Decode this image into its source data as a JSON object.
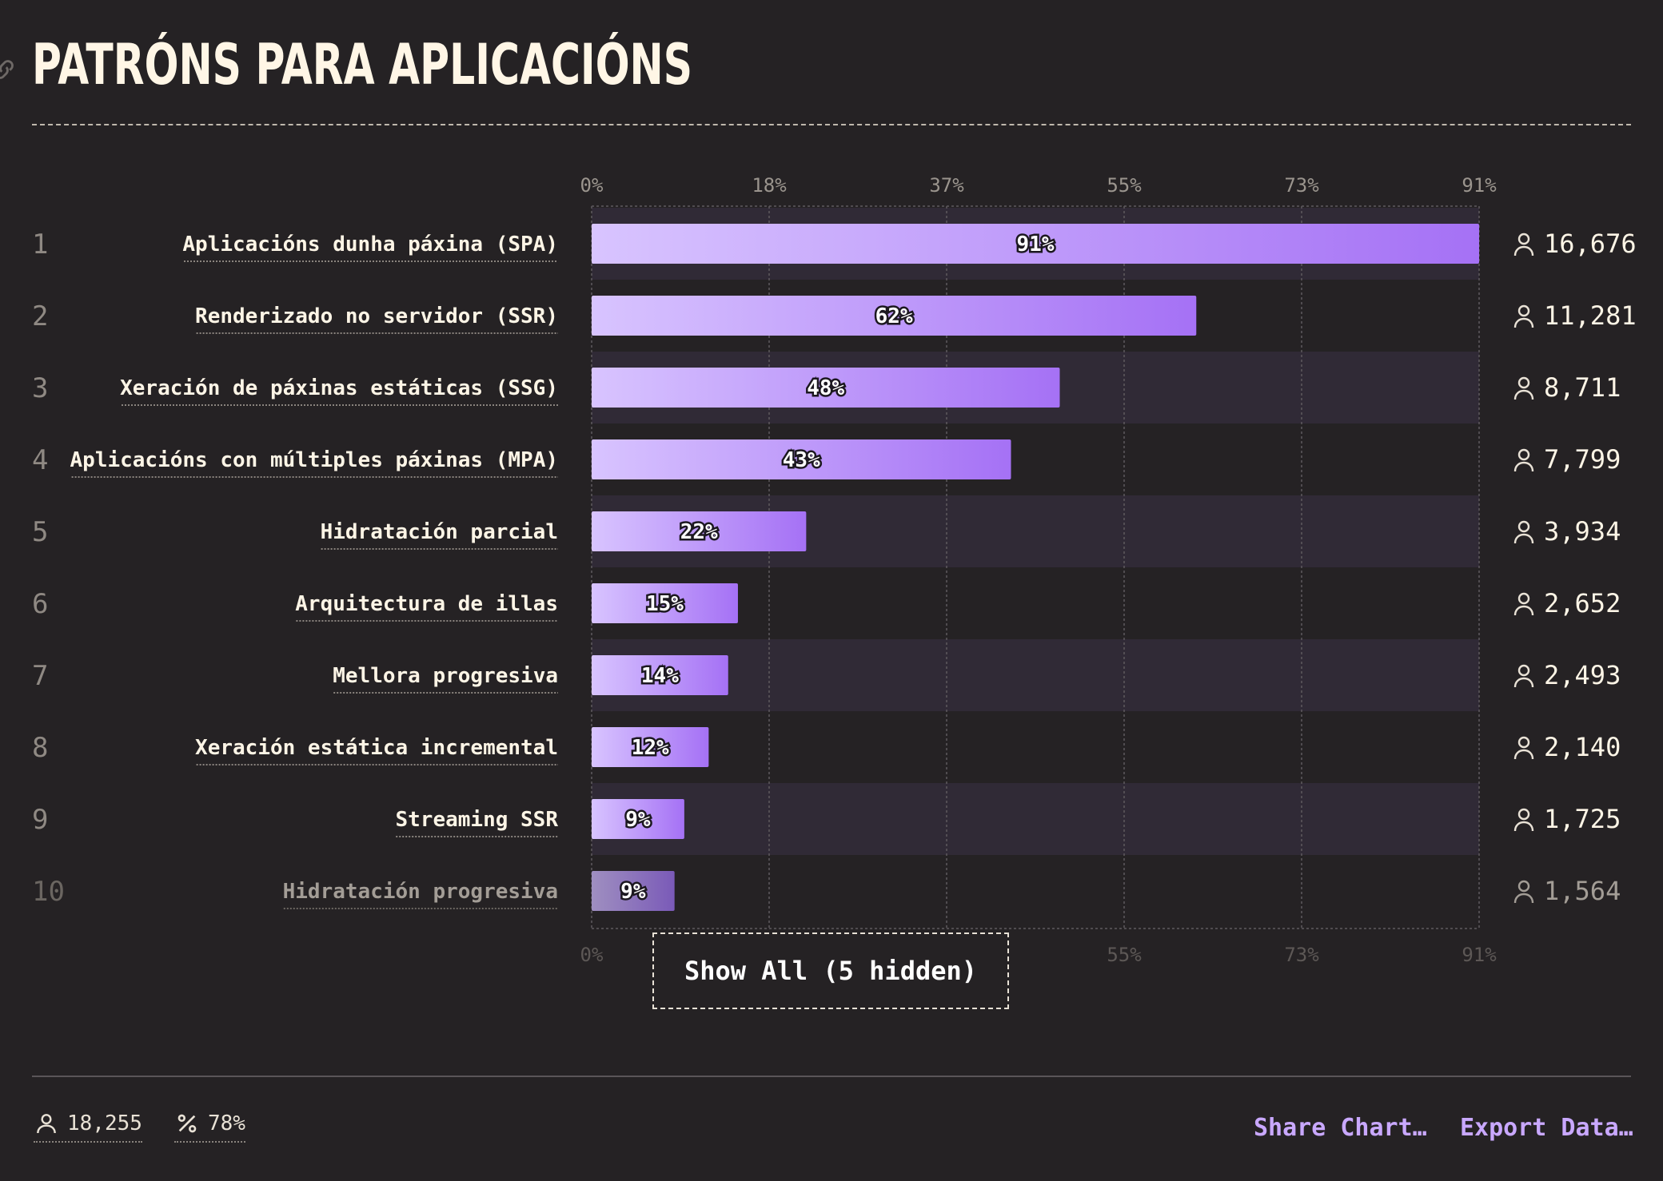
{
  "title": "PATRÓNS PARA APLICACIÓNS",
  "chart_data": {
    "type": "bar",
    "orientation": "horizontal",
    "title": "PATRÓNS PARA APLICACIÓNS",
    "xlim": [
      0,
      91
    ],
    "ticks": [
      "0%",
      "18%",
      "37%",
      "55%",
      "73%",
      "91%"
    ],
    "tick_values": [
      0,
      18.2,
      36.4,
      54.6,
      72.8,
      91
    ],
    "rows": [
      {
        "rank": "1",
        "label": "Aplicacións dunha páxina (SPA)",
        "value": 91,
        "value_label": "91%",
        "count": "16,676"
      },
      {
        "rank": "2",
        "label": "Renderizado no servidor (SSR)",
        "value": 62,
        "value_label": "62%",
        "count": "11,281"
      },
      {
        "rank": "3",
        "label": "Xeración de páxinas estáticas (SSG)",
        "value": 48,
        "value_label": "48%",
        "count": "8,711"
      },
      {
        "rank": "4",
        "label": "Aplicacións con múltiples páxinas (MPA)",
        "value": 43,
        "value_label": "43%",
        "count": "7,799"
      },
      {
        "rank": "5",
        "label": "Hidratación parcial",
        "value": 22,
        "value_label": "22%",
        "count": "3,934"
      },
      {
        "rank": "6",
        "label": "Arquitectura de illas",
        "value": 15,
        "value_label": "15%",
        "count": "2,652"
      },
      {
        "rank": "7",
        "label": "Mellora progresiva",
        "value": 14,
        "value_label": "14%",
        "count": "2,493"
      },
      {
        "rank": "8",
        "label": "Xeración estática incremental",
        "value": 12,
        "value_label": "12%",
        "count": "2,140"
      },
      {
        "rank": "9",
        "label": "Streaming SSR",
        "value": 9.5,
        "value_label": "9%",
        "count": "1,725"
      },
      {
        "rank": "10",
        "label": "Hidratación progresiva",
        "value": 8.5,
        "value_label": "9%",
        "count": "1,564",
        "faded": true
      }
    ],
    "colors": {
      "bar_start": "#d8c4ff",
      "bar_end": "#a571f5",
      "accent": "#c9a8ff"
    }
  },
  "show_all_label": "Show All (5 hidden)",
  "footer": {
    "total_respondents": "18,255",
    "percent": "78%",
    "share_label": "Share Chart…",
    "export_label": "Export Data…"
  }
}
